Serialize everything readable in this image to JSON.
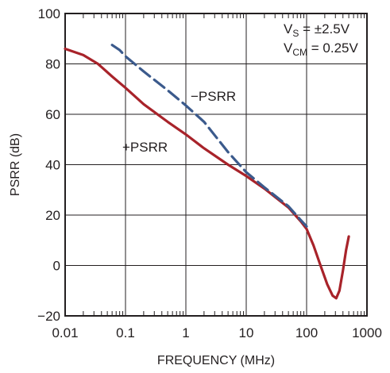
{
  "chart_data": {
    "type": "line",
    "title": "",
    "xlabel": "FREQUENCY (MHz)",
    "ylabel": "PSRR (dB)",
    "x_scale": "log",
    "xlim": [
      0.01,
      1000
    ],
    "ylim": [
      -20,
      100
    ],
    "x_ticks": [
      "0.01",
      "0.1",
      "1",
      "10",
      "100",
      "1000"
    ],
    "y_ticks": [
      "−20",
      "0",
      "20",
      "40",
      "60",
      "80",
      "100"
    ],
    "grid": true,
    "legend": "none",
    "conditions": {
      "vs": {
        "main": "V",
        "sub": "S",
        "rest": " = ±2.5V"
      },
      "vcm": {
        "main": "V",
        "sub": "CM",
        "rest": " = 0.25V"
      }
    },
    "series": [
      {
        "name": "+PSRR",
        "color": "#a8232a",
        "style": "solid",
        "points": [
          [
            0.01,
            86
          ],
          [
            0.02,
            83.5
          ],
          [
            0.035,
            80
          ],
          [
            0.06,
            75
          ],
          [
            0.1,
            70.5
          ],
          [
            0.2,
            64
          ],
          [
            0.5,
            57
          ],
          [
            1,
            52
          ],
          [
            2,
            46.5
          ],
          [
            5,
            40
          ],
          [
            10,
            35.5
          ],
          [
            20,
            30.5
          ],
          [
            50,
            23
          ],
          [
            80,
            17.5
          ],
          [
            100,
            14.5
          ],
          [
            130,
            8
          ],
          [
            170,
            0
          ],
          [
            220,
            -7.5
          ],
          [
            270,
            -12
          ],
          [
            310,
            -13
          ],
          [
            350,
            -10
          ],
          [
            400,
            -2
          ],
          [
            450,
            6
          ],
          [
            500,
            11.5
          ]
        ]
      },
      {
        "name": "−PSRR",
        "color": "#3b5a8c",
        "style": "dashed",
        "points": [
          [
            0.06,
            87.5
          ],
          [
            0.08,
            85.5
          ],
          [
            0.1,
            83
          ],
          [
            0.2,
            77
          ],
          [
            0.5,
            69.5
          ],
          [
            1,
            63.5
          ],
          [
            2,
            57
          ],
          [
            5,
            45
          ],
          [
            10,
            37
          ],
          [
            20,
            31
          ],
          [
            50,
            23.5
          ],
          [
            80,
            18
          ],
          [
            100,
            15.5
          ]
        ]
      }
    ],
    "annotations": [
      "−PSRR",
      "+PSRR"
    ]
  }
}
